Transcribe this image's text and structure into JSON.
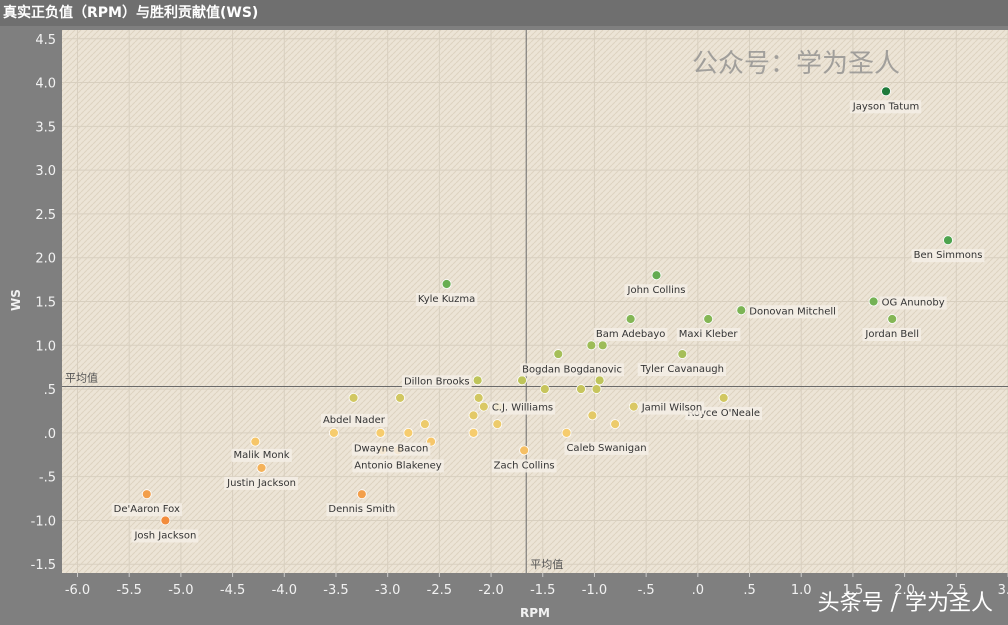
{
  "header": {
    "title": "真实正负值（RPM）与胜利贡献值(WS)"
  },
  "watermarks": {
    "top": "公众号：学为圣人",
    "bottom": "头条号 / 学为圣人"
  },
  "colors": {
    "plot_bg": "#ece4d6",
    "frame": "#7f7f7f",
    "high": "#1e7a3a",
    "low": "#f08a3c"
  },
  "chart_data": {
    "type": "scatter",
    "xlabel": "RPM",
    "ylabel": "WS",
    "xlim": [
      -6.15,
      3.0
    ],
    "ylim": [
      -1.6,
      4.6
    ],
    "x_ticks": [
      "-6.0",
      "-5.5",
      "-5.0",
      "-4.5",
      "-4.0",
      "-3.5",
      "-3.0",
      "-2.5",
      "-2.0",
      "-1.5",
      "-1.0",
      "-.5",
      ".0",
      ".5",
      "1.0",
      "1.5",
      "2.0",
      "2.5",
      "3.0"
    ],
    "x_tick_values": [
      -6.0,
      -5.5,
      -5.0,
      -4.5,
      -4.0,
      -3.5,
      -3.0,
      -2.5,
      -2.0,
      -1.5,
      -1.0,
      -0.5,
      0.0,
      0.5,
      1.0,
      1.5,
      2.0,
      2.5,
      3.0
    ],
    "y_ticks": [
      "4.5",
      "4.0",
      "3.5",
      "3.0",
      "2.5",
      "2.0",
      "1.5",
      "1.0",
      ".5",
      ".0",
      "-.5",
      "-1.0",
      "-1.5"
    ],
    "y_tick_values": [
      4.5,
      4.0,
      3.5,
      3.0,
      2.5,
      2.0,
      1.5,
      1.0,
      0.5,
      0.0,
      -0.5,
      -1.0,
      -1.5
    ],
    "grid": true,
    "reference_lines": {
      "x": {
        "value": -1.66,
        "label": "平均值"
      },
      "y": {
        "value": 0.53,
        "label": "平均值"
      }
    },
    "points": [
      {
        "name": "Jayson Tatum",
        "x": 1.82,
        "y": 3.9
      },
      {
        "name": "Ben Simmons",
        "x": 2.42,
        "y": 2.2
      },
      {
        "name": "John Collins",
        "x": -0.4,
        "y": 1.8
      },
      {
        "name": "Kyle Kuzma",
        "x": -2.43,
        "y": 1.7
      },
      {
        "name": "OG Anunoby",
        "x": 1.7,
        "y": 1.5
      },
      {
        "name": "Donovan Mitchell",
        "x": 0.42,
        "y": 1.4
      },
      {
        "name": "Jordan Bell",
        "x": 1.88,
        "y": 1.3
      },
      {
        "name": "Maxi Kleber",
        "x": 0.1,
        "y": 1.3
      },
      {
        "name": "Bam Adebayo",
        "x": -0.65,
        "y": 1.3
      },
      {
        "name": "",
        "x": -1.03,
        "y": 1.0
      },
      {
        "name": "",
        "x": -0.92,
        "y": 1.0
      },
      {
        "name": "",
        "x": -1.35,
        "y": 0.9
      },
      {
        "name": "Tyler Cavanaugh",
        "x": -0.15,
        "y": 0.9
      },
      {
        "name": "Dillon Brooks",
        "x": -2.13,
        "y": 0.6
      },
      {
        "name": "Bogdan Bogdanovic",
        "x": -1.7,
        "y": 0.6
      },
      {
        "name": "",
        "x": -0.95,
        "y": 0.6
      },
      {
        "name": "",
        "x": -1.48,
        "y": 0.5
      },
      {
        "name": "",
        "x": -1.13,
        "y": 0.5
      },
      {
        "name": "",
        "x": -0.98,
        "y": 0.5
      },
      {
        "name": "Royce O'Neale",
        "x": 0.25,
        "y": 0.4
      },
      {
        "name": "",
        "x": -3.33,
        "y": 0.4
      },
      {
        "name": "",
        "x": -2.88,
        "y": 0.4
      },
      {
        "name": "",
        "x": -2.12,
        "y": 0.4
      },
      {
        "name": "C.J. Williams",
        "x": -2.07,
        "y": 0.3
      },
      {
        "name": "",
        "x": -1.93,
        "y": 0.3
      },
      {
        "name": "Jamil Wilson",
        "x": -0.62,
        "y": 0.3
      },
      {
        "name": "",
        "x": -2.17,
        "y": 0.2
      },
      {
        "name": "",
        "x": -1.02,
        "y": 0.2
      },
      {
        "name": "",
        "x": -2.64,
        "y": 0.1
      },
      {
        "name": "",
        "x": -1.94,
        "y": 0.1
      },
      {
        "name": "",
        "x": -0.8,
        "y": 0.1
      },
      {
        "name": "Abdel Nader",
        "x": -3.52,
        "y": 0.0
      },
      {
        "name": "",
        "x": -3.07,
        "y": 0.0
      },
      {
        "name": "",
        "x": -2.8,
        "y": 0.0
      },
      {
        "name": "",
        "x": -2.17,
        "y": 0.0
      },
      {
        "name": "Caleb Swanigan",
        "x": -1.27,
        "y": 0.0
      },
      {
        "name": "",
        "x": -4.28,
        "y": -0.1
      },
      {
        "name": "Dwayne Bacon",
        "x": -2.58,
        "y": -0.1
      },
      {
        "name": "",
        "x": -3.05,
        "y": -0.2
      },
      {
        "name": "Antonio Blakeney",
        "x": -2.9,
        "y": -0.2
      },
      {
        "name": "Zach Collins",
        "x": -1.68,
        "y": -0.2
      },
      {
        "name": "Malik Monk",
        "x": -4.22,
        "y": -0.4
      },
      {
        "name": "Justin Jackson",
        "x": -4.22,
        "y": -0.4
      },
      {
        "name": "De'Aaron Fox",
        "x": -5.33,
        "y": -0.7
      },
      {
        "name": "Dennis Smith",
        "x": -3.25,
        "y": -0.7
      },
      {
        "name": "Josh Jackson",
        "x": -5.15,
        "y": -1.0
      }
    ]
  }
}
